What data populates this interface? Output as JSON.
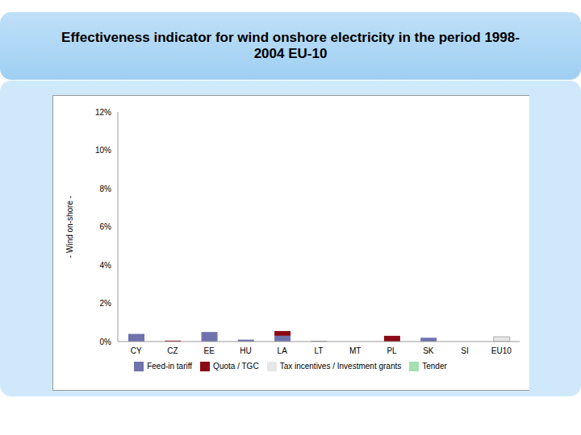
{
  "chart_data": {
    "type": "bar",
    "title": "Effectiveness indicator for wind onshore electricity in the period 1998-2004 EU-10",
    "y_label": "- Wind on-shore -",
    "categories": [
      "CY",
      "CZ",
      "EE",
      "HU",
      "LA",
      "LT",
      "MT",
      "PL",
      "SK",
      "SI",
      "EU10"
    ],
    "stacked": true,
    "series": [
      {
        "name": "Feed-in tariff",
        "color": "#6f72ad",
        "values": [
          0.4,
          null,
          0.5,
          0.1,
          0.3,
          0.03,
          null,
          null,
          0.2,
          null,
          null
        ]
      },
      {
        "name": "Quota / TGC",
        "color": "#8b0a14",
        "values": [
          null,
          0.05,
          null,
          null,
          0.25,
          null,
          null,
          0.3,
          null,
          null,
          null
        ]
      },
      {
        "name": "Tender",
        "color": "#a6dfb0",
        "values": [
          null,
          null,
          null,
          null,
          null,
          null,
          null,
          null,
          null,
          null,
          null
        ]
      },
      {
        "name": "Tax incentives / Investment grants",
        "color": "#e6e6e6",
        "values": [
          null,
          null,
          null,
          null,
          null,
          null,
          null,
          null,
          null,
          null,
          0.25
        ]
      }
    ],
    "ylim": [
      0,
      12
    ],
    "yticks": [
      {
        "value": 0,
        "label": "0%"
      },
      {
        "value": 2,
        "label": "2%"
      },
      {
        "value": 4,
        "label": "4%"
      },
      {
        "value": 6,
        "label": "6%"
      },
      {
        "value": 8,
        "label": "8%"
      },
      {
        "value": 10,
        "label": "10%"
      },
      {
        "value": 12,
        "label": "12%"
      }
    ],
    "grid": false,
    "legend": "bottom"
  }
}
